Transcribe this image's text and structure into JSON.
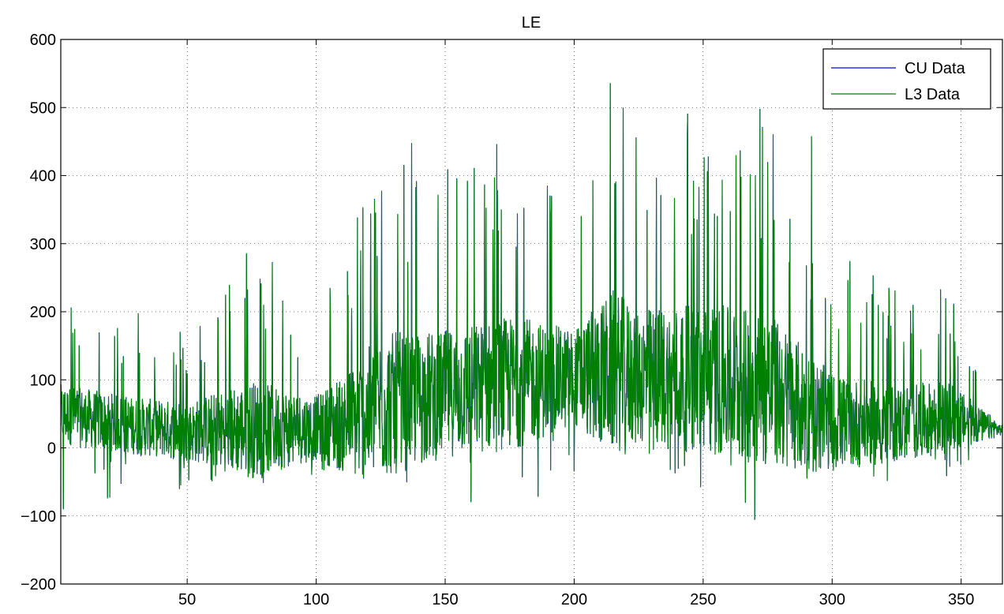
{
  "chart_data": {
    "type": "line",
    "title": "LE",
    "xlabel": "",
    "ylabel": "",
    "xlim": [
      1,
      366
    ],
    "ylim": [
      -200,
      600
    ],
    "x_ticks": [
      50,
      100,
      150,
      200,
      250,
      300,
      350
    ],
    "y_ticks": [
      -200,
      -100,
      0,
      100,
      200,
      300,
      400,
      500,
      600
    ],
    "y_tick_labels": [
      "−200",
      "−100",
      "0",
      "100",
      "200",
      "300",
      "400",
      "500",
      "600"
    ],
    "grid": true,
    "legend_position": "top-right",
    "series": [
      {
        "name": "CU Data",
        "color": "#0000ff"
      },
      {
        "name": "L3 Data",
        "color": "#008000"
      }
    ],
    "approx_envelope": {
      "x": [
        1,
        25,
        50,
        75,
        100,
        115,
        125,
        150,
        175,
        200,
        215,
        225,
        250,
        275,
        300,
        325,
        345,
        366
      ],
      "baseline": [
        45,
        30,
        20,
        20,
        25,
        30,
        50,
        70,
        85,
        95,
        100,
        95,
        90,
        75,
        30,
        30,
        40,
        25
      ],
      "peak": [
        205,
        185,
        175,
        285,
        195,
        340,
        445,
        410,
        445,
        360,
        535,
        460,
        490,
        495,
        290,
        235,
        233,
        50
      ],
      "trough": [
        -90,
        -70,
        -60,
        -55,
        -50,
        -15,
        -35,
        -80,
        -75,
        -40,
        -35,
        -30,
        -60,
        -105,
        -20,
        -55,
        -40,
        -15
      ]
    },
    "notable_points": [
      {
        "x": 2,
        "y": -90
      },
      {
        "x": 5,
        "y": 205
      },
      {
        "x": 20,
        "y": -72
      },
      {
        "x": 31,
        "y": 198
      },
      {
        "x": 47,
        "y": -60
      },
      {
        "x": 73,
        "y": 286
      },
      {
        "x": 83,
        "y": 272
      },
      {
        "x": 87,
        "y": 215
      },
      {
        "x": 116,
        "y": 338
      },
      {
        "x": 123,
        "y": 345
      },
      {
        "x": 134,
        "y": 415
      },
      {
        "x": 137,
        "y": 447
      },
      {
        "x": 151,
        "y": 408
      },
      {
        "x": 160,
        "y": -80
      },
      {
        "x": 170,
        "y": 446
      },
      {
        "x": 186,
        "y": 447
      },
      {
        "x": 186,
        "y": -72
      },
      {
        "x": 214,
        "y": 536
      },
      {
        "x": 219,
        "y": 500
      },
      {
        "x": 224,
        "y": 455
      },
      {
        "x": 244,
        "y": 491
      },
      {
        "x": 249,
        "y": -58
      },
      {
        "x": 270,
        "y": -105
      },
      {
        "x": 272,
        "y": 497
      },
      {
        "x": 273,
        "y": 470
      },
      {
        "x": 292,
        "y": 458
      },
      {
        "x": 322,
        "y": 235
      },
      {
        "x": 342,
        "y": 233
      }
    ]
  }
}
